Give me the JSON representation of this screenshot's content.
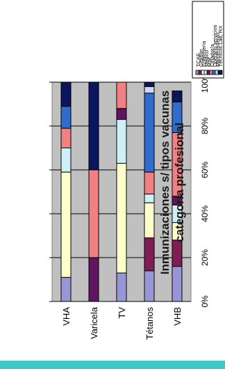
{
  "chart_data": {
    "type": "bar",
    "stacked": true,
    "orientation": "horizontal",
    "title": "Inmunizaciones s/ tipos vacunas",
    "subtitle": "categoría profesional",
    "categories": [
      "VHA",
      "Varicela",
      "TV",
      "Tétanos",
      "VHB"
    ],
    "xlim": [
      0,
      100
    ],
    "x_ticks": [
      "0%",
      "20%",
      "40%",
      "60%",
      "80%",
      "100%"
    ],
    "grid": true,
    "legend_position": "right",
    "series": [
      {
        "name": "TCAE",
        "color": "#9797d5",
        "values": [
          11,
          0,
          13,
          14,
          16
        ]
      },
      {
        "name": "Gestión",
        "color": "#7f1d56",
        "values": [
          0,
          0,
          0,
          0,
          0
        ]
      },
      {
        "name": "Enfermería",
        "color": "#ffffcc",
        "values": [
          48,
          0,
          50,
          16,
          8
        ]
      },
      {
        "name": "Médico",
        "color": "#ccf0f6",
        "values": [
          11,
          0,
          20,
          4,
          8
        ]
      },
      {
        "name": "MIR",
        "color": "#5f1560",
        "values": [
          0,
          20,
          5,
          0,
          4
        ]
      },
      {
        "name": "Celador/a",
        "color": "#f08081",
        "values": [
          9,
          40,
          12,
          10,
          29
        ]
      },
      {
        "name": "Operario servicios",
        "color": "#2f6ccb",
        "values": [
          10,
          0,
          0,
          36,
          14
        ]
      },
      {
        "name": "Mantenimiento",
        "color": "#cfd5f2",
        "values": [
          0,
          0,
          0,
          3,
          0
        ]
      },
      {
        "name": "Técnicos Lab, RX",
        "color": "#0a1660",
        "values": [
          11,
          40,
          0,
          2,
          5
        ]
      }
    ],
    "extra_gestion_values": [
      0,
      0,
      0,
      15,
      12
    ]
  }
}
